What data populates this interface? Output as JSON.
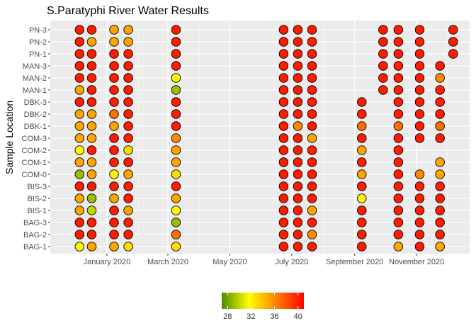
{
  "chart_data": {
    "type": "scatter",
    "title": "S.Paratyphi River Water Results",
    "ylabel": "Sample Location",
    "xlabel": "",
    "x_ticks": [
      "January 2020",
      "March 2020",
      "May 2020",
      "July 2020",
      "September 2020",
      "November 2020"
    ],
    "locations": [
      "BAG-1",
      "BAG-2",
      "BAG-3",
      "BIS-1",
      "BIS-2",
      "BIS-3",
      "COM-0",
      "COM-1",
      "COM-2",
      "COM-3",
      "DBK-1",
      "DBK-2",
      "DBK-3",
      "MAN-1",
      "MAN-2",
      "MAN-3",
      "PN-1",
      "PN-2",
      "PN-3"
    ],
    "dates": [
      "2019-12-05",
      "2019-12-17",
      "2020-01-08",
      "2020-01-22",
      "2020-02-11",
      "2020-03-09",
      "2020-06-23",
      "2020-07-07",
      "2020-07-21",
      "2020-08-25",
      "2020-09-08",
      "2020-09-29",
      "2020-10-14",
      "2020-11-04",
      "2020-11-24",
      "2020-12-07"
    ],
    "values": {
      "PN-3": [
        40,
        40,
        35,
        35,
        null,
        40,
        40,
        40,
        40,
        null,
        null,
        40,
        40,
        40,
        null,
        40
      ],
      "PN-2": [
        40,
        35,
        35,
        35,
        null,
        40,
        40,
        40,
        40,
        null,
        null,
        40,
        40,
        40,
        null,
        40
      ],
      "PN-1": [
        40,
        40,
        40,
        40,
        null,
        40,
        40,
        40,
        40,
        null,
        null,
        40,
        40,
        40,
        null,
        40
      ],
      "MAN-3": [
        40,
        40,
        40,
        40,
        null,
        40,
        40,
        40,
        40,
        null,
        null,
        40,
        40,
        40,
        40,
        null
      ],
      "MAN-2": [
        40,
        40,
        40,
        40,
        null,
        32,
        40,
        40,
        40,
        null,
        null,
        40,
        40,
        40,
        36,
        null
      ],
      "MAN-1": [
        35,
        40,
        40,
        40,
        null,
        29,
        40,
        40,
        40,
        null,
        null,
        40,
        40,
        40,
        40,
        null
      ],
      "DBK-3": [
        40,
        40,
        40,
        40,
        null,
        40,
        40,
        40,
        40,
        null,
        40,
        null,
        40,
        40,
        40,
        null
      ],
      "DBK-2": [
        35,
        35,
        37,
        40,
        null,
        40,
        40,
        40,
        40,
        null,
        40,
        null,
        40,
        40,
        40,
        null
      ],
      "DBK-1": [
        35,
        35,
        35,
        40,
        null,
        40,
        40,
        36,
        40,
        null,
        37,
        null,
        37,
        40,
        37,
        null
      ],
      "COM-3": [
        35,
        35,
        40,
        40,
        null,
        36,
        40,
        40,
        35,
        null,
        40,
        null,
        40,
        40,
        40,
        null
      ],
      "COM-2": [
        32,
        40,
        40,
        33,
        null,
        35,
        40,
        40,
        40,
        null,
        35,
        null,
        40,
        null,
        null,
        null
      ],
      "COM-1": [
        35,
        35,
        40,
        40,
        null,
        35,
        40,
        40,
        40,
        null,
        40,
        null,
        40,
        null,
        35,
        null
      ],
      "COM-0": [
        29,
        35,
        32,
        35,
        null,
        33,
        40,
        40,
        40,
        null,
        35,
        null,
        40,
        36,
        35,
        null
      ],
      "BIS-3": [
        40,
        40,
        40,
        40,
        null,
        40,
        40,
        40,
        40,
        null,
        40,
        null,
        40,
        40,
        40,
        null
      ],
      "BIS-2": [
        35,
        29,
        35,
        40,
        null,
        35,
        40,
        40,
        40,
        null,
        32,
        null,
        40,
        40,
        40,
        null
      ],
      "BIS-1": [
        35,
        30,
        40,
        35,
        null,
        32,
        40,
        40,
        35,
        null,
        40,
        null,
        40,
        40,
        40,
        null
      ],
      "BAG-3": [
        40,
        40,
        40,
        40,
        null,
        29,
        40,
        40,
        40,
        null,
        40,
        null,
        40,
        40,
        40,
        null
      ],
      "BAG-2": [
        40,
        40,
        40,
        40,
        null,
        37,
        40,
        40,
        36,
        null,
        40,
        null,
        40,
        40,
        40,
        null
      ],
      "BAG-1": [
        32,
        35,
        35,
        33,
        null,
        33,
        40,
        40,
        40,
        null,
        40,
        null,
        35,
        40,
        35,
        null
      ]
    },
    "color_scale": {
      "min": 27,
      "max": 41,
      "stops": [
        "#4d8c00",
        "#ffff00",
        "#ff8000",
        "#ff0000"
      ],
      "ticks": [
        28,
        32,
        36,
        40
      ]
    },
    "grid": true,
    "legend_position": "bottom"
  }
}
